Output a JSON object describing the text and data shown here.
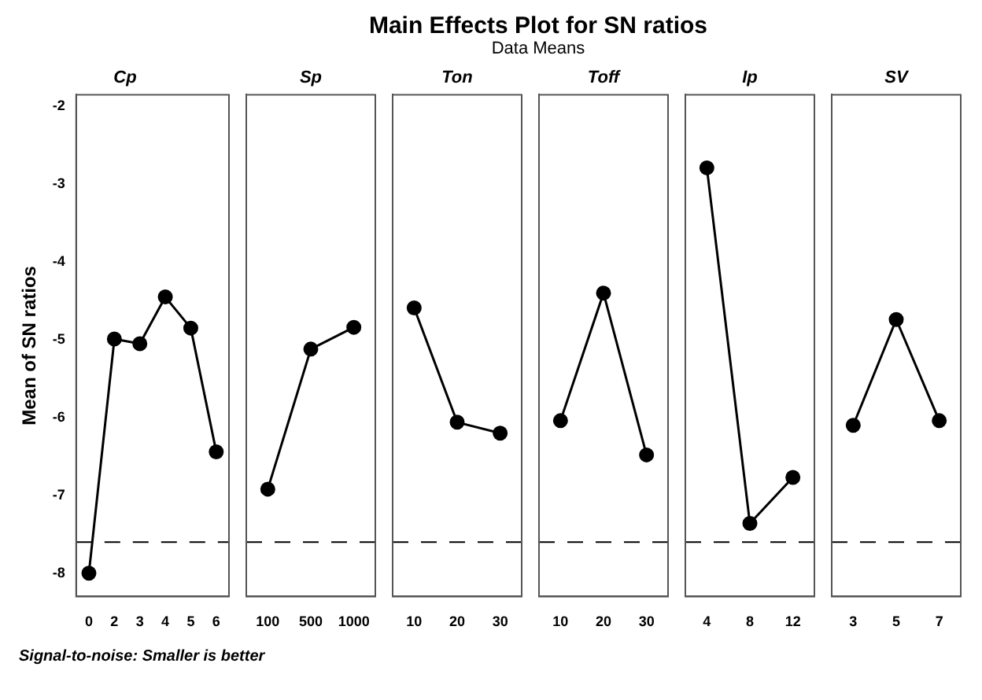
{
  "chart_data": [
    {
      "type": "other",
      "title": "Main Effects Plot for SN ratios",
      "subtitle": "Data Means"
    },
    {
      "type": "line",
      "title": "Cp",
      "ylabel": "Mean of SN ratios",
      "annotations": [
        "Signal-to-noise: Smaller is better"
      ],
      "categories": [
        "0",
        "2",
        "3",
        "4",
        "5",
        "6"
      ],
      "values": [
        -8.0,
        -4.99,
        -5.05,
        -4.45,
        -4.85,
        -6.44
      ],
      "color": "#000000",
      "marker": "circle",
      "ylim": [
        -8.3,
        -1.85
      ],
      "yticks": [
        -8,
        -7,
        -6,
        -5,
        -4,
        -3,
        -2
      ],
      "ref_lines": [
        {
          "axis": "y",
          "value": -7.6,
          "line_style": "dashed"
        }
      ]
    },
    {
      "type": "line",
      "title": "Sp",
      "categories": [
        "100",
        "500",
        "1000"
      ],
      "values": [
        -6.92,
        -5.12,
        -4.84
      ],
      "color": "#000000",
      "marker": "circle",
      "ylim": [
        -8.3,
        -1.85
      ],
      "tick_labels": "x",
      "ref_lines": [
        {
          "axis": "y",
          "value": -7.6,
          "line_style": "dashed"
        }
      ]
    },
    {
      "type": "line",
      "title": "Ton",
      "categories": [
        "10",
        "20",
        "30"
      ],
      "values": [
        -4.59,
        -6.06,
        -6.2
      ],
      "color": "#000000",
      "marker": "circle",
      "ylim": [
        -8.3,
        -1.85
      ],
      "tick_labels": "x",
      "ref_lines": [
        {
          "axis": "y",
          "value": -7.6,
          "line_style": "dashed"
        }
      ]
    },
    {
      "type": "line",
      "title": "Toff",
      "categories": [
        "10",
        "20",
        "30"
      ],
      "values": [
        -6.04,
        -4.4,
        -6.48
      ],
      "color": "#000000",
      "marker": "circle",
      "ylim": [
        -8.3,
        -1.85
      ],
      "tick_labels": "x",
      "ref_lines": [
        {
          "axis": "y",
          "value": -7.6,
          "line_style": "dashed"
        }
      ]
    },
    {
      "type": "line",
      "title": "Ip",
      "categories": [
        "4",
        "8",
        "12"
      ],
      "values": [
        -2.79,
        -7.36,
        -6.77
      ],
      "color": "#000000",
      "marker": "circle",
      "ylim": [
        -8.3,
        -1.85
      ],
      "tick_labels": "x",
      "ref_lines": [
        {
          "axis": "y",
          "value": -7.6,
          "line_style": "dashed"
        }
      ]
    },
    {
      "type": "line",
      "title": "SV",
      "categories": [
        "3",
        "5",
        "7"
      ],
      "values": [
        -6.1,
        -4.74,
        -6.04
      ],
      "color": "#000000",
      "marker": "circle",
      "ylim": [
        -8.3,
        -1.85
      ],
      "tick_labels": "x",
      "ref_lines": [
        {
          "axis": "y",
          "value": -7.6,
          "line_style": "dashed"
        }
      ]
    }
  ]
}
